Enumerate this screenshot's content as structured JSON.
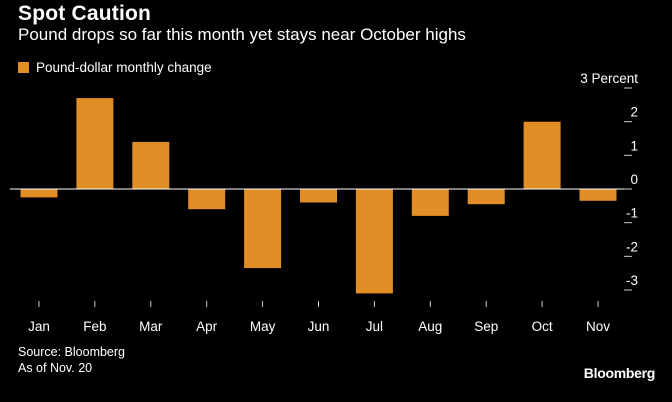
{
  "title": "Spot Caution",
  "subtitle": "Pound drops so far this month yet stays near October highs",
  "source": "Source: Bloomberg",
  "as_of": "As of Nov. 20",
  "brand": "Bloomberg",
  "colors": {
    "bar": "#e08e25",
    "background": "#000000",
    "text": "#ffffff"
  },
  "chart_data": {
    "type": "bar",
    "title": "Spot Caution",
    "subtitle": "Pound drops so far this month yet stays near October highs",
    "legend": [
      "Pound-dollar monthly change"
    ],
    "ylabel": "Percent",
    "categories": [
      "Jan",
      "Feb",
      "Mar",
      "Apr",
      "May",
      "Jun",
      "Jul",
      "Aug",
      "Sep",
      "Oct",
      "Nov"
    ],
    "series": [
      {
        "name": "Pound-dollar monthly change",
        "values": [
          -0.25,
          2.7,
          1.4,
          -0.6,
          -2.35,
          -0.4,
          -3.1,
          -0.8,
          -0.45,
          2.0,
          -0.35
        ]
      }
    ],
    "ylim": [
      -3,
      3
    ],
    "yticks": [
      3,
      2,
      1,
      0,
      -1,
      -2,
      -3
    ],
    "ytick_labels": [
      "3 Percent",
      "2",
      "1",
      "0",
      "-1",
      "-2",
      "-3"
    ]
  }
}
